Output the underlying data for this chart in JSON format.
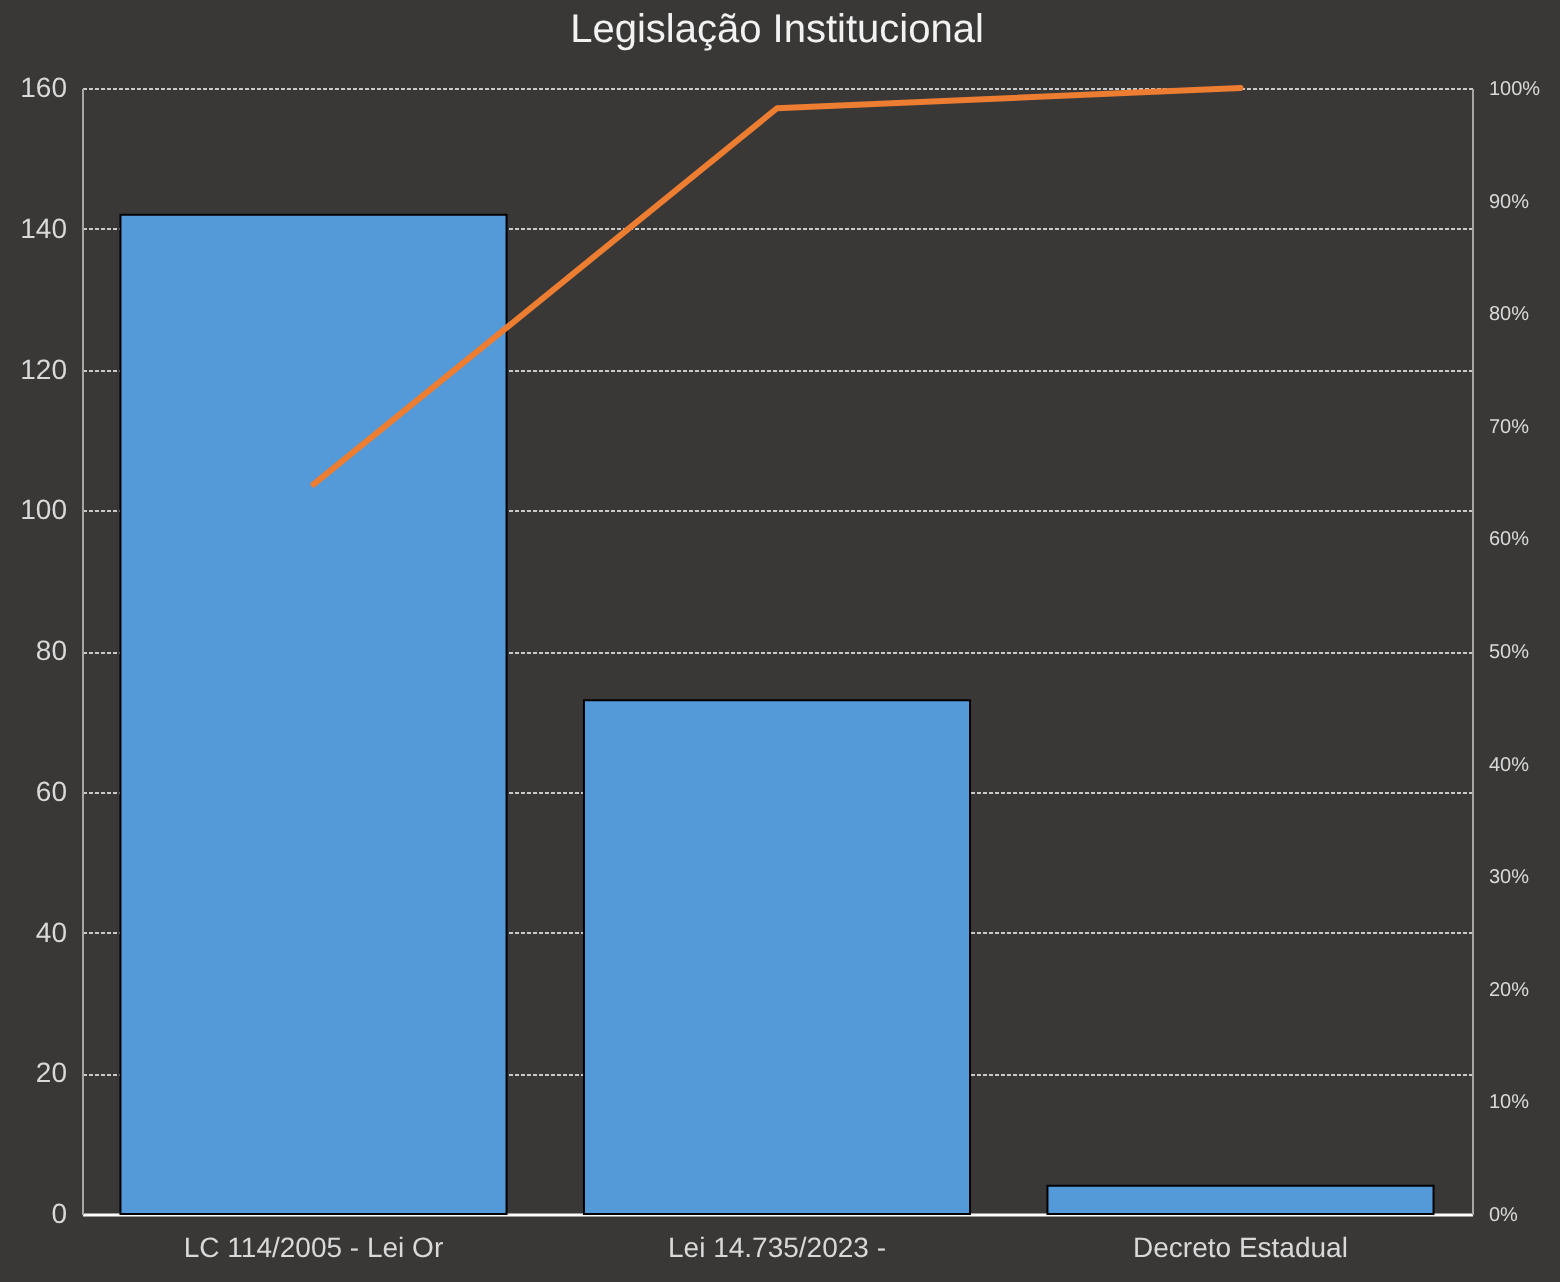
{
  "chart_data": {
    "type": "bar",
    "title": "Legislação Institucional",
    "categories": [
      "LC 114/2005 - Lei Or",
      "Lei 14.735/2023 -",
      "Decreto Estadual"
    ],
    "series": [
      {
        "color": "#5499d8",
        "values": [
          142,
          73,
          4
        ]
      },
      {
        "type": "line",
        "axis": "y2",
        "color": "#ed7d31",
        "values": [
          64.8,
          98.2,
          100
        ]
      }
    ],
    "ylim": [
      0,
      160
    ],
    "yticks": [
      0,
      20,
      40,
      60,
      80,
      100,
      120,
      140,
      160
    ],
    "y2lim": [
      0,
      100
    ],
    "y2ticks": [
      {
        "value": 0,
        "label": "0%"
      },
      {
        "value": 10,
        "label": "10%"
      },
      {
        "value": 20,
        "label": "20%"
      },
      {
        "value": 30,
        "label": "30%"
      },
      {
        "value": 40,
        "label": "40%"
      },
      {
        "value": 50,
        "label": "50%"
      },
      {
        "value": 60,
        "label": "60%"
      },
      {
        "value": 70,
        "label": "70%"
      },
      {
        "value": 80,
        "label": "80%"
      },
      {
        "value": 90,
        "label": "90%"
      },
      {
        "value": 100,
        "label": "100%"
      }
    ],
    "grid": "y"
  }
}
